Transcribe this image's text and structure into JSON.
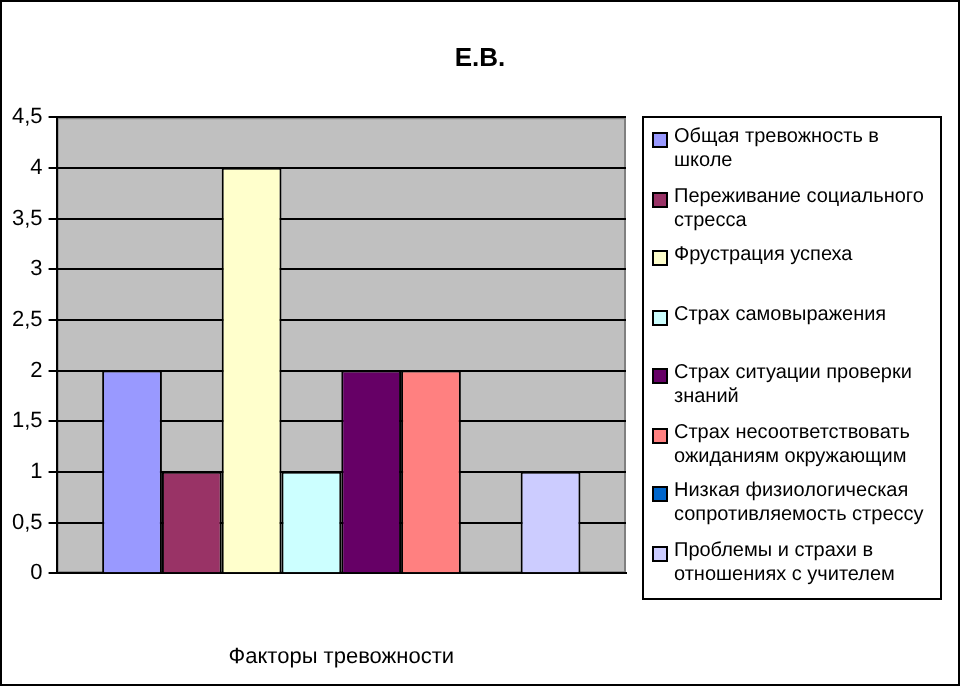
{
  "chart_data": {
    "type": "bar",
    "title": "Е.В.",
    "xlabel": "Факторы тревожности",
    "categories": [
      null
    ],
    "series": [
      {
        "name": "Общая тревожность в школе",
        "color": "#9999ff",
        "values": [
          2
        ]
      },
      {
        "name": "Переживание социального стресса",
        "color": "#993366",
        "values": [
          1
        ]
      },
      {
        "name": "Фрустрация успеха",
        "color": "#ffffcc",
        "values": [
          4
        ]
      },
      {
        "name": "Страх самовыражения",
        "color": "#ccffff",
        "values": [
          1
        ]
      },
      {
        "name": "Страх ситуации проверки знаний",
        "color": "#660066",
        "values": [
          2
        ]
      },
      {
        "name": "Страх несоответствовать ожиданиям окружающим",
        "color": "#ff8080",
        "values": [
          2
        ]
      },
      {
        "name": "Низкая физиологическая сопротивляемость стрессу",
        "color": "#0066cc",
        "values": [
          0
        ]
      },
      {
        "name": "Проблемы и страхи в отношениях с учителем",
        "color": "#ccccff",
        "values": [
          1
        ]
      }
    ],
    "ylim": [
      0,
      4.5
    ],
    "yticks": [
      0,
      {
        "value": 0.5,
        "label": "0,5"
      },
      1,
      {
        "value": 1.5,
        "label": "1,5"
      },
      2,
      {
        "value": 2.5,
        "label": "2,5"
      },
      3,
      {
        "value": 3.5,
        "label": "3,5"
      },
      4,
      {
        "value": 4.5,
        "label": "4,5"
      }
    ],
    "grid": "y",
    "legend": "right"
  }
}
